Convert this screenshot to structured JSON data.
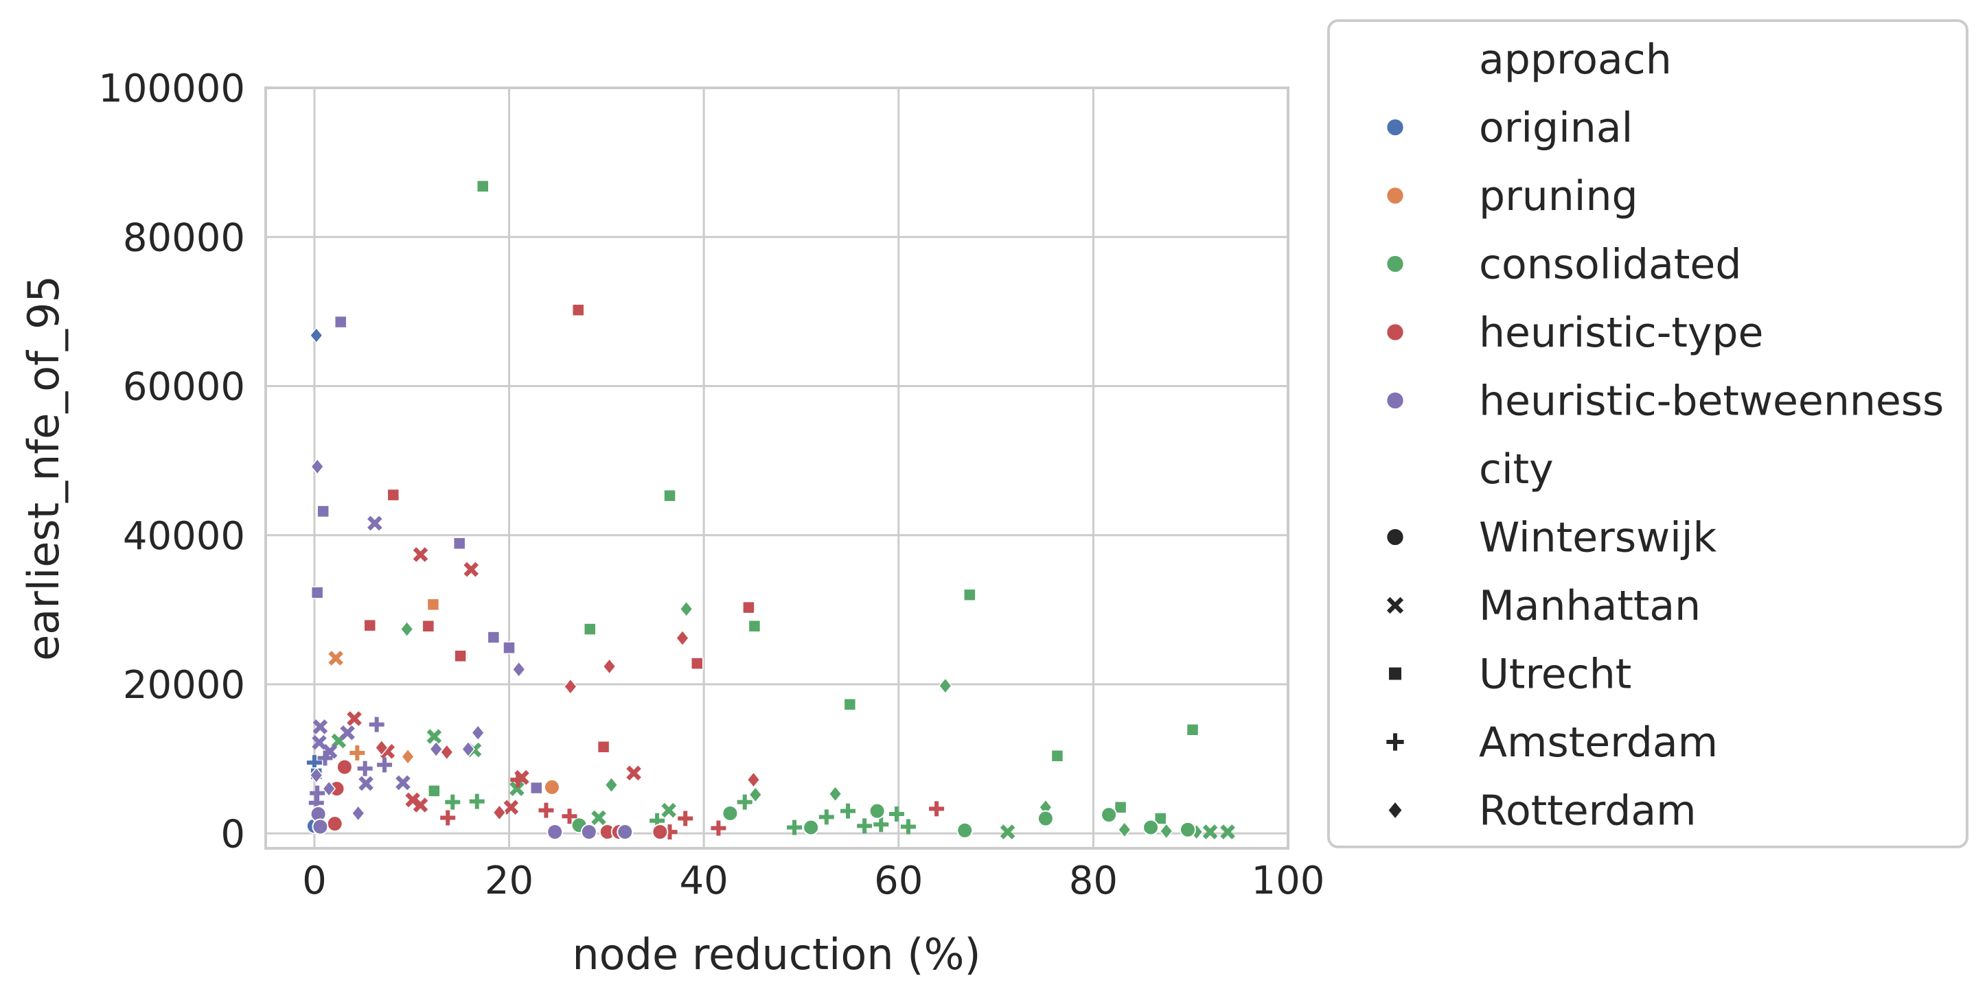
{
  "chart_data": {
    "type": "scatter",
    "xlabel": "node reduction (%)",
    "ylabel": "earliest_nfe_of_95",
    "xlim": [
      -5,
      100
    ],
    "ylim": [
      -2000,
      100000
    ],
    "x_ticks": [
      "0",
      "20",
      "40",
      "60",
      "80",
      "100"
    ],
    "y_ticks": [
      "0",
      "20000",
      "40000",
      "60000",
      "80000",
      "100000"
    ],
    "x_tick_values": [
      0,
      20,
      40,
      60,
      80,
      100
    ],
    "y_tick_values": [
      0,
      20000,
      40000,
      60000,
      80000,
      100000
    ],
    "grid": true,
    "legend_position": "right",
    "legend": {
      "hue_title": "approach",
      "hue_entries": [
        {
          "name": "original",
          "color": "#4c72b0"
        },
        {
          "name": "pruning",
          "color": "#dd8452"
        },
        {
          "name": "consolidated",
          "color": "#55a868"
        },
        {
          "name": "heuristic-type",
          "color": "#c44e52"
        },
        {
          "name": "heuristic-betweenness",
          "color": "#8172b3"
        }
      ],
      "style_title": "city",
      "style_entries": [
        {
          "name": "Winterswijk",
          "marker": "circle"
        },
        {
          "name": "Manhattan",
          "marker": "x"
        },
        {
          "name": "Utrecht",
          "marker": "square"
        },
        {
          "name": "Amsterdam",
          "marker": "plus"
        },
        {
          "name": "Rotterdam",
          "marker": "diamond"
        }
      ]
    },
    "series": [
      {
        "name": "original",
        "color": "#4c72b0",
        "points": [
          {
            "x": 0,
            "y": 1000,
            "m": "circle"
          },
          {
            "x": 0,
            "y": 9500,
            "m": "plus"
          },
          {
            "x": 0.2,
            "y": 66800,
            "m": "diamond"
          },
          {
            "x": 0.2,
            "y": 8000,
            "m": "square"
          }
        ]
      },
      {
        "name": "pruning",
        "color": "#dd8452",
        "points": [
          {
            "x": 2.2,
            "y": 23500,
            "m": "x"
          },
          {
            "x": 12.2,
            "y": 30700,
            "m": "square"
          },
          {
            "x": 4.4,
            "y": 10800,
            "m": "plus"
          },
          {
            "x": 9.6,
            "y": 10300,
            "m": "diamond"
          },
          {
            "x": 24.4,
            "y": 6200,
            "m": "circle"
          }
        ]
      },
      {
        "name": "consolidated",
        "color": "#55a868",
        "points": [
          {
            "x": 17.3,
            "y": 86800,
            "m": "square"
          },
          {
            "x": 36.5,
            "y": 45300,
            "m": "square"
          },
          {
            "x": 67.3,
            "y": 32000,
            "m": "square"
          },
          {
            "x": 45.2,
            "y": 27800,
            "m": "square"
          },
          {
            "x": 28.3,
            "y": 27400,
            "m": "square"
          },
          {
            "x": 55.0,
            "y": 17300,
            "m": "square"
          },
          {
            "x": 90.2,
            "y": 13900,
            "m": "square"
          },
          {
            "x": 76.3,
            "y": 10400,
            "m": "square"
          },
          {
            "x": 82.8,
            "y": 3500,
            "m": "square"
          },
          {
            "x": 86.9,
            "y": 2000,
            "m": "square"
          },
          {
            "x": 12.3,
            "y": 5700,
            "m": "square"
          },
          {
            "x": 9.5,
            "y": 27400,
            "m": "diamond"
          },
          {
            "x": 38.2,
            "y": 30100,
            "m": "diamond"
          },
          {
            "x": 64.8,
            "y": 19800,
            "m": "diamond"
          },
          {
            "x": 53.5,
            "y": 5300,
            "m": "diamond"
          },
          {
            "x": 45.3,
            "y": 5200,
            "m": "diamond"
          },
          {
            "x": 30.5,
            "y": 6500,
            "m": "diamond"
          },
          {
            "x": 75.1,
            "y": 3500,
            "m": "diamond"
          },
          {
            "x": 83.2,
            "y": 500,
            "m": "diamond"
          },
          {
            "x": 87.5,
            "y": 300,
            "m": "diamond"
          },
          {
            "x": 90.6,
            "y": 200,
            "m": "diamond"
          },
          {
            "x": 2.5,
            "y": 12400,
            "m": "x"
          },
          {
            "x": 12.3,
            "y": 13000,
            "m": "x"
          },
          {
            "x": 16.4,
            "y": 11200,
            "m": "x"
          },
          {
            "x": 20.8,
            "y": 6000,
            "m": "x"
          },
          {
            "x": 29.2,
            "y": 2100,
            "m": "x"
          },
          {
            "x": 36.4,
            "y": 3100,
            "m": "x"
          },
          {
            "x": 71.2,
            "y": 200,
            "m": "x"
          },
          {
            "x": 92.0,
            "y": 200,
            "m": "x"
          },
          {
            "x": 93.8,
            "y": 200,
            "m": "x"
          },
          {
            "x": 16.7,
            "y": 4300,
            "m": "plus"
          },
          {
            "x": 14.2,
            "y": 4200,
            "m": "plus"
          },
          {
            "x": 35.2,
            "y": 1700,
            "m": "plus"
          },
          {
            "x": 44.2,
            "y": 4200,
            "m": "plus"
          },
          {
            "x": 49.3,
            "y": 800,
            "m": "plus"
          },
          {
            "x": 52.6,
            "y": 2200,
            "m": "plus"
          },
          {
            "x": 54.8,
            "y": 3000,
            "m": "plus"
          },
          {
            "x": 56.5,
            "y": 1000,
            "m": "plus"
          },
          {
            "x": 58.2,
            "y": 1200,
            "m": "plus"
          },
          {
            "x": 59.8,
            "y": 2600,
            "m": "plus"
          },
          {
            "x": 61.0,
            "y": 900,
            "m": "plus"
          },
          {
            "x": 27.2,
            "y": 1100,
            "m": "circle"
          },
          {
            "x": 42.7,
            "y": 2700,
            "m": "circle"
          },
          {
            "x": 51.0,
            "y": 800,
            "m": "circle"
          },
          {
            "x": 57.8,
            "y": 3000,
            "m": "circle"
          },
          {
            "x": 66.8,
            "y": 400,
            "m": "circle"
          },
          {
            "x": 75.1,
            "y": 2000,
            "m": "circle"
          },
          {
            "x": 81.6,
            "y": 2500,
            "m": "circle"
          },
          {
            "x": 85.9,
            "y": 800,
            "m": "circle"
          },
          {
            "x": 89.7,
            "y": 500,
            "m": "circle"
          }
        ]
      },
      {
        "name": "heuristic-type",
        "color": "#c44e52",
        "points": [
          {
            "x": 27.1,
            "y": 70200,
            "m": "square"
          },
          {
            "x": 8.1,
            "y": 45400,
            "m": "square"
          },
          {
            "x": 44.6,
            "y": 30300,
            "m": "square"
          },
          {
            "x": 5.7,
            "y": 27900,
            "m": "square"
          },
          {
            "x": 11.7,
            "y": 27800,
            "m": "square"
          },
          {
            "x": 15.0,
            "y": 23800,
            "m": "square"
          },
          {
            "x": 39.3,
            "y": 22800,
            "m": "square"
          },
          {
            "x": 29.7,
            "y": 11600,
            "m": "square"
          },
          {
            "x": 10.9,
            "y": 37400,
            "m": "x"
          },
          {
            "x": 16.1,
            "y": 35400,
            "m": "x"
          },
          {
            "x": 4.1,
            "y": 15400,
            "m": "x"
          },
          {
            "x": 7.5,
            "y": 11000,
            "m": "x"
          },
          {
            "x": 21.3,
            "y": 7500,
            "m": "x"
          },
          {
            "x": 32.8,
            "y": 8100,
            "m": "x"
          },
          {
            "x": 10.1,
            "y": 4500,
            "m": "x"
          },
          {
            "x": 10.9,
            "y": 3800,
            "m": "x"
          },
          {
            "x": 20.2,
            "y": 3500,
            "m": "x"
          },
          {
            "x": 37.8,
            "y": 26200,
            "m": "diamond"
          },
          {
            "x": 30.3,
            "y": 22400,
            "m": "diamond"
          },
          {
            "x": 26.3,
            "y": 19700,
            "m": "diamond"
          },
          {
            "x": 6.9,
            "y": 11500,
            "m": "diamond"
          },
          {
            "x": 13.6,
            "y": 10900,
            "m": "diamond"
          },
          {
            "x": 45.1,
            "y": 7200,
            "m": "diamond"
          },
          {
            "x": 19.0,
            "y": 2800,
            "m": "diamond"
          },
          {
            "x": 20.9,
            "y": 7200,
            "m": "plus"
          },
          {
            "x": 23.8,
            "y": 3100,
            "m": "plus"
          },
          {
            "x": 26.2,
            "y": 2300,
            "m": "plus"
          },
          {
            "x": 13.7,
            "y": 2100,
            "m": "plus"
          },
          {
            "x": 38.1,
            "y": 2000,
            "m": "plus"
          },
          {
            "x": 41.5,
            "y": 700,
            "m": "plus"
          },
          {
            "x": 63.9,
            "y": 3300,
            "m": "plus"
          },
          {
            "x": 36.5,
            "y": 200,
            "m": "plus"
          },
          {
            "x": 3.1,
            "y": 8900,
            "m": "circle"
          },
          {
            "x": 2.3,
            "y": 6000,
            "m": "circle"
          },
          {
            "x": 2.1,
            "y": 1300,
            "m": "circle"
          },
          {
            "x": 30.1,
            "y": 200,
            "m": "circle"
          },
          {
            "x": 31.3,
            "y": 200,
            "m": "circle"
          },
          {
            "x": 35.5,
            "y": 200,
            "m": "circle"
          }
        ]
      },
      {
        "name": "heuristic-betweenness",
        "color": "#8172b3",
        "points": [
          {
            "x": 2.7,
            "y": 68600,
            "m": "square"
          },
          {
            "x": 0.9,
            "y": 43200,
            "m": "square"
          },
          {
            "x": 14.9,
            "y": 38900,
            "m": "square"
          },
          {
            "x": 0.3,
            "y": 32300,
            "m": "square"
          },
          {
            "x": 18.4,
            "y": 26300,
            "m": "square"
          },
          {
            "x": 20.0,
            "y": 24900,
            "m": "square"
          },
          {
            "x": 22.8,
            "y": 6100,
            "m": "square"
          },
          {
            "x": 0.3,
            "y": 49200,
            "m": "diamond"
          },
          {
            "x": 21.0,
            "y": 22000,
            "m": "diamond"
          },
          {
            "x": 16.8,
            "y": 13500,
            "m": "diamond"
          },
          {
            "x": 12.5,
            "y": 11300,
            "m": "diamond"
          },
          {
            "x": 15.8,
            "y": 11300,
            "m": "diamond"
          },
          {
            "x": 1.5,
            "y": 6000,
            "m": "diamond"
          },
          {
            "x": 4.5,
            "y": 2700,
            "m": "diamond"
          },
          {
            "x": 0.2,
            "y": 7800,
            "m": "diamond"
          },
          {
            "x": 6.2,
            "y": 41600,
            "m": "x"
          },
          {
            "x": 0.6,
            "y": 14300,
            "m": "x"
          },
          {
            "x": 3.4,
            "y": 13500,
            "m": "x"
          },
          {
            "x": 1.6,
            "y": 11000,
            "m": "x"
          },
          {
            "x": 0.5,
            "y": 12200,
            "m": "x"
          },
          {
            "x": 5.3,
            "y": 6700,
            "m": "x"
          },
          {
            "x": 9.1,
            "y": 6800,
            "m": "x"
          },
          {
            "x": 6.4,
            "y": 14600,
            "m": "plus"
          },
          {
            "x": 1.1,
            "y": 10100,
            "m": "plus"
          },
          {
            "x": 5.2,
            "y": 8700,
            "m": "plus"
          },
          {
            "x": 7.2,
            "y": 9200,
            "m": "plus"
          },
          {
            "x": 0.3,
            "y": 5400,
            "m": "plus"
          },
          {
            "x": 0.2,
            "y": 4100,
            "m": "plus"
          },
          {
            "x": 0.4,
            "y": 2600,
            "m": "circle"
          },
          {
            "x": 0.6,
            "y": 900,
            "m": "circle"
          },
          {
            "x": 24.7,
            "y": 200,
            "m": "circle"
          },
          {
            "x": 28.2,
            "y": 200,
            "m": "circle"
          },
          {
            "x": 31.9,
            "y": 200,
            "m": "circle"
          }
        ]
      }
    ]
  }
}
